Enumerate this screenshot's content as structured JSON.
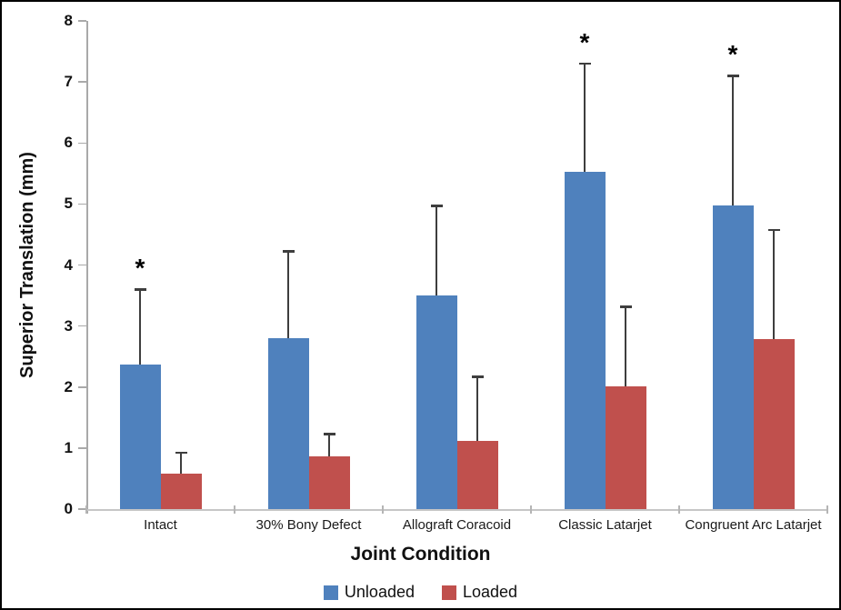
{
  "chart_data": {
    "type": "bar",
    "title": "",
    "xlabel": "Joint Condition",
    "ylabel": "Superior Translation (mm)",
    "ylim": [
      0,
      8
    ],
    "yticks": [
      "0",
      "1",
      "2",
      "3",
      "4",
      "5",
      "6",
      "7",
      "8"
    ],
    "grid": false,
    "legend_position": "bottom",
    "significance_marker": "*",
    "categories": [
      "Intact",
      "30% Bony Defect",
      "Allograft Coracoid",
      "Classic Latarjet",
      "Congruent Arc Latarjet"
    ],
    "series": [
      {
        "name": "Unloaded",
        "color": "#4F81BD",
        "values": [
          2.37,
          2.8,
          3.5,
          5.53,
          4.98
        ],
        "error_plus": [
          1.23,
          1.43,
          1.47,
          1.77,
          2.12
        ],
        "significant": [
          true,
          false,
          false,
          true,
          true
        ]
      },
      {
        "name": "Loaded",
        "color": "#C0504D",
        "values": [
          0.58,
          0.86,
          1.11,
          2.01,
          2.78
        ],
        "error_plus": [
          0.35,
          0.37,
          1.06,
          1.31,
          1.8
        ],
        "significant": [
          false,
          false,
          false,
          false,
          false
        ]
      }
    ]
  }
}
